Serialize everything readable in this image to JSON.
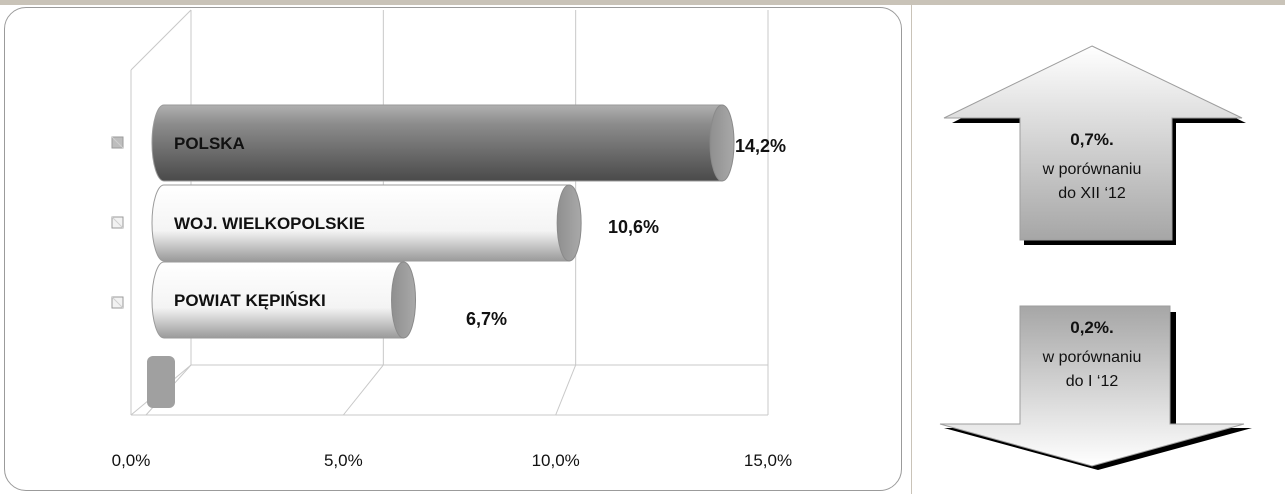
{
  "chart_data": {
    "type": "bar",
    "orientation": "horizontal",
    "style": "3d-cylinder",
    "categories": [
      "POLSKA",
      "WOJ. WIELKOPOLSKIE",
      "POWIAT KĘPIŃSKI"
    ],
    "values": [
      14.2,
      10.6,
      6.7
    ],
    "value_labels": [
      "14,2%",
      "10,6%",
      "6,7%"
    ],
    "bar_colors": [
      "#7f7f7f",
      "#ffffff",
      "#ffffff"
    ],
    "xlim": [
      0,
      15
    ],
    "x_ticks": [
      "0,0%",
      "5,0%",
      "10,0%",
      "15,0%"
    ],
    "grid": true,
    "legend": "left"
  },
  "changes": [
    {
      "direction": "up",
      "value": "0,7%.",
      "line1": "w porównaniu",
      "line2": "do XII ‘12",
      "color": "#d9d9d9"
    },
    {
      "direction": "down",
      "value": "0,2%.",
      "line1": "w porównaniu",
      "line2": "do I ‘12",
      "color": "#d9d9d9"
    }
  ]
}
